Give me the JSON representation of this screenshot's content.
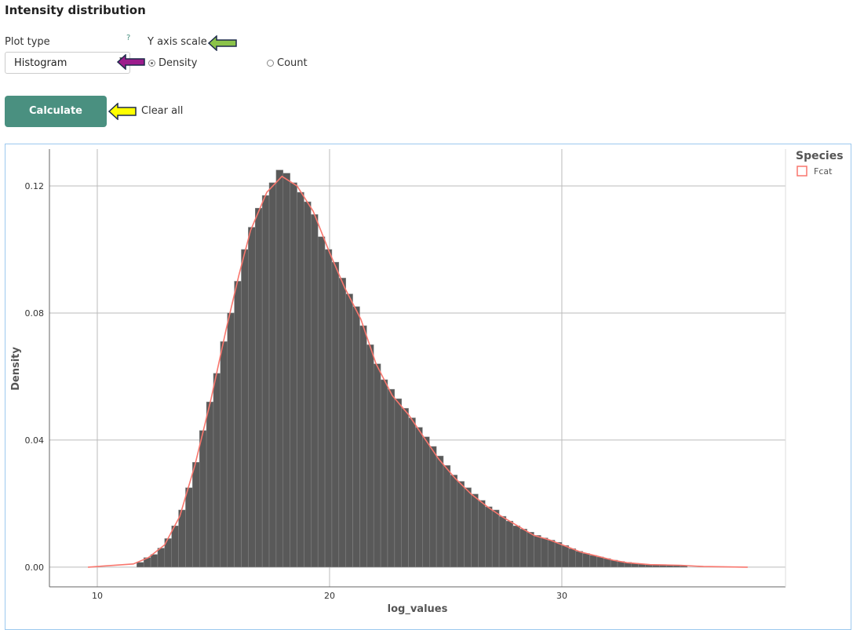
{
  "header": {
    "title": "Intensity distribution"
  },
  "controls": {
    "plot_type_label": "Plot type",
    "help": "?",
    "plot_type_value": "Histogram",
    "y_scale_label": "Y axis scale",
    "y_scale_options": [
      {
        "label": "Density",
        "selected": true
      },
      {
        "label": "Count",
        "selected": false
      }
    ],
    "calculate": "Calculate",
    "clear_all": "Clear all",
    "arrow_colors": {
      "green": "#8bc34a",
      "purple": "#9c1c8c",
      "yellow": "#ffff00"
    },
    "button_color": "#4a9080"
  },
  "chart_data": {
    "type": "bar",
    "xlabel": "log_values",
    "ylabel": "Density",
    "xlim": [
      7.94,
      39.63
    ],
    "ylim": [
      -0.0062,
      0.1316
    ],
    "xticks": [
      "10",
      "20",
      "30"
    ],
    "xtick_values": [
      10,
      20,
      30
    ],
    "yticks": [
      "0.00",
      "0.04",
      "0.08",
      "0.12"
    ],
    "ytick_values": [
      0,
      0.04,
      0.08,
      0.12
    ],
    "grid": true,
    "legend": {
      "title": "Species",
      "position": "right",
      "entries": [
        {
          "name": "Fcat",
          "color": "#f8766d"
        }
      ]
    },
    "bar_color": "#595959",
    "bin_start": 11.7,
    "bin_width": 0.3,
    "values": [
      0.0015,
      0.003,
      0.004,
      0.006,
      0.009,
      0.013,
      0.018,
      0.025,
      0.033,
      0.043,
      0.052,
      0.061,
      0.071,
      0.08,
      0.09,
      0.1,
      0.107,
      0.113,
      0.117,
      0.121,
      0.125,
      0.124,
      0.121,
      0.118,
      0.115,
      0.111,
      0.104,
      0.1,
      0.096,
      0.091,
      0.086,
      0.082,
      0.076,
      0.07,
      0.064,
      0.059,
      0.056,
      0.053,
      0.05,
      0.047,
      0.044,
      0.041,
      0.038,
      0.035,
      0.032,
      0.029,
      0.027,
      0.025,
      0.023,
      0.021,
      0.019,
      0.018,
      0.016,
      0.0145,
      0.013,
      0.012,
      0.011,
      0.01,
      0.0092,
      0.0085,
      0.0078,
      0.0068,
      0.0058,
      0.005,
      0.0043,
      0.0037,
      0.0032,
      0.0027,
      0.0022,
      0.0018,
      0.0015,
      0.0012,
      0.001,
      0.0009,
      0.0008,
      0.0008,
      0.0007,
      0.0006,
      0.0004
    ],
    "density_curve": {
      "name": "Fcat",
      "color": "#f8766d",
      "x": [
        9.6,
        11.55,
        12.2,
        12.9,
        13.55,
        14.2,
        14.9,
        15.55,
        16.1,
        16.6,
        17.3,
        17.95,
        18.6,
        19.3,
        20.0,
        20.65,
        21.35,
        22.0,
        22.7,
        23.4,
        24.05,
        24.7,
        25.4,
        26.1,
        26.8,
        27.4,
        28.1,
        28.8,
        29.5,
        30.1,
        30.8,
        31.5,
        32.2,
        32.8,
        33.8,
        35.1,
        36.1,
        38.0
      ],
      "y": [
        0,
        0.001,
        0.003,
        0.007,
        0.016,
        0.032,
        0.053,
        0.075,
        0.092,
        0.106,
        0.118,
        0.123,
        0.12,
        0.112,
        0.099,
        0.088,
        0.078,
        0.064,
        0.054,
        0.048,
        0.041,
        0.034,
        0.028,
        0.023,
        0.019,
        0.016,
        0.013,
        0.01,
        0.0085,
        0.0068,
        0.0048,
        0.0035,
        0.0022,
        0.0014,
        0.0008,
        0.0006,
        0.0002,
        0
      ]
    }
  }
}
